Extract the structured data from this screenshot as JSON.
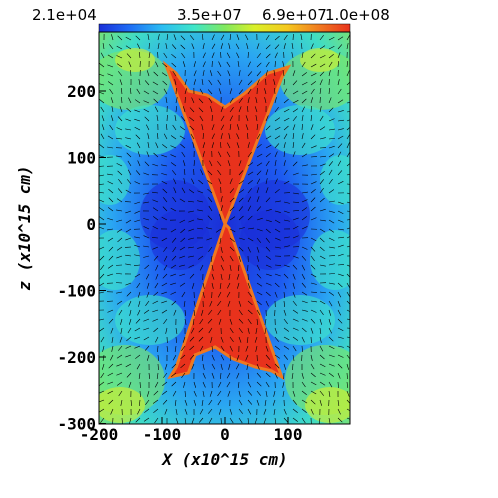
{
  "chart_data": {
    "type": "heatmap",
    "colorbar": {
      "tick_labels": [
        "2.1e+04",
        "3.5e+07",
        "6.9e+07",
        "1.0e+08"
      ],
      "range": [
        21000,
        100000000
      ],
      "colormap": [
        "#1a2fd8",
        "#1f6cf5",
        "#2bbcf2",
        "#3fe6c8",
        "#7fe860",
        "#d9f02a",
        "#f5c81f",
        "#f07820",
        "#e8321c"
      ]
    },
    "xlabel": "X (x10^15 cm)",
    "ylabel": "z (x10^15 cm)",
    "xlim": [
      -200,
      200
    ],
    "ylim": [
      -300,
      300
    ],
    "xticks": [
      {
        "value": -200,
        "label": "-200"
      },
      {
        "value": -100,
        "label": "-100"
      },
      {
        "value": 0,
        "label": "0"
      },
      {
        "value": 100,
        "label": "100"
      }
    ],
    "yticks": [
      {
        "value": -300,
        "label": "-300"
      },
      {
        "value": -200,
        "label": "-200"
      },
      {
        "value": -100,
        "label": "-100"
      },
      {
        "value": 0,
        "label": "0"
      },
      {
        "value": 100,
        "label": "100"
      },
      {
        "value": 200,
        "label": "200"
      }
    ],
    "jet_region": {
      "description_values": "high-density biconical outflow",
      "vertex": [
        0,
        0
      ],
      "top_edge_z": 230,
      "top_half_width": 100,
      "bottom_edge_z": -230,
      "bottom_half_width": 90,
      "value": 100000000
    },
    "vector_field": true
  }
}
